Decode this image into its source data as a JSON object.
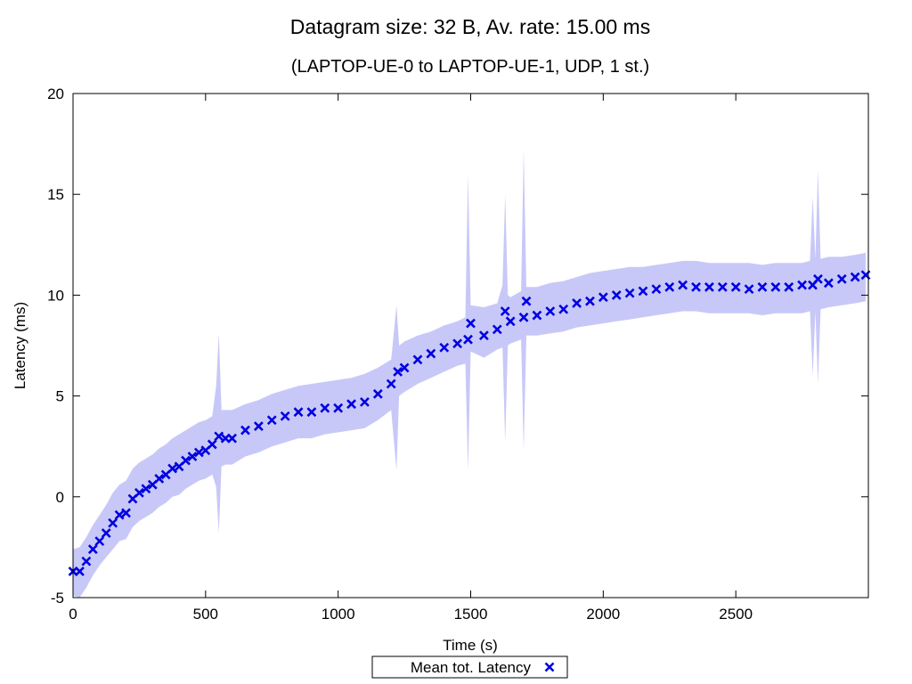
{
  "chart_data": {
    "type": "scatter",
    "title": "Datagram size: 32 B, Av. rate: 15.00 ms",
    "subtitle": "(LAPTOP-UE-0 to LAPTOP-UE-1, UDP, 1 st.)",
    "xlabel": "Time (s)",
    "ylabel": "Latency (ms)",
    "xlim": [
      0,
      3000
    ],
    "ylim": [
      -5,
      20
    ],
    "x_ticks": [
      0,
      500,
      1000,
      1500,
      2000,
      2500
    ],
    "y_ticks": [
      -5,
      0,
      5,
      10,
      15,
      20
    ],
    "grid": false,
    "legend_position": "bottom-center",
    "colors": {
      "series": "#0000e0",
      "band": "#c8c8f8"
    },
    "series": [
      {
        "name": "Mean tot. Latency",
        "marker": "x",
        "x": [
          0,
          25,
          50,
          75,
          100,
          125,
          150,
          175,
          200,
          225,
          250,
          275,
          300,
          325,
          350,
          375,
          400,
          425,
          450,
          475,
          500,
          525,
          550,
          575,
          600,
          650,
          700,
          750,
          800,
          850,
          900,
          950,
          1000,
          1050,
          1100,
          1150,
          1200,
          1225,
          1250,
          1300,
          1350,
          1400,
          1450,
          1490,
          1500,
          1550,
          1600,
          1630,
          1650,
          1700,
          1710,
          1750,
          1800,
          1850,
          1900,
          1950,
          2000,
          2050,
          2100,
          2150,
          2200,
          2250,
          2300,
          2350,
          2400,
          2450,
          2500,
          2550,
          2600,
          2650,
          2700,
          2750,
          2790,
          2810,
          2850,
          2900,
          2950,
          2990
        ],
        "y": [
          -3.7,
          -3.7,
          -3.2,
          -2.6,
          -2.2,
          -1.8,
          -1.3,
          -0.9,
          -0.8,
          -0.1,
          0.2,
          0.4,
          0.6,
          0.9,
          1.1,
          1.4,
          1.5,
          1.8,
          2.0,
          2.2,
          2.3,
          2.6,
          3.0,
          2.9,
          2.9,
          3.3,
          3.5,
          3.8,
          4.0,
          4.2,
          4.2,
          4.4,
          4.4,
          4.6,
          4.7,
          5.1,
          5.6,
          6.2,
          6.4,
          6.8,
          7.1,
          7.4,
          7.6,
          7.8,
          8.6,
          8.0,
          8.3,
          9.2,
          8.7,
          8.9,
          9.7,
          9.0,
          9.2,
          9.3,
          9.6,
          9.7,
          9.9,
          10.0,
          10.1,
          10.2,
          10.3,
          10.4,
          10.5,
          10.4,
          10.4,
          10.4,
          10.4,
          10.3,
          10.4,
          10.4,
          10.4,
          10.5,
          10.5,
          10.8,
          10.6,
          10.8,
          10.9,
          11.0
        ]
      }
    ],
    "band": {
      "name": "",
      "x": [
        0,
        25,
        50,
        75,
        100,
        125,
        150,
        175,
        200,
        225,
        250,
        275,
        300,
        325,
        350,
        375,
        400,
        425,
        450,
        475,
        500,
        525,
        540,
        550,
        560,
        575,
        600,
        650,
        700,
        750,
        800,
        850,
        900,
        950,
        1000,
        1050,
        1100,
        1150,
        1200,
        1220,
        1230,
        1240,
        1250,
        1300,
        1350,
        1400,
        1450,
        1480,
        1490,
        1500,
        1550,
        1600,
        1620,
        1630,
        1640,
        1650,
        1690,
        1700,
        1710,
        1720,
        1750,
        1800,
        1850,
        1900,
        1950,
        2000,
        2050,
        2100,
        2150,
        2200,
        2250,
        2300,
        2350,
        2400,
        2450,
        2500,
        2550,
        2600,
        2650,
        2700,
        2750,
        2780,
        2790,
        2800,
        2810,
        2820,
        2850,
        2900,
        2950,
        2990
      ],
      "upper": [
        -2.6,
        -2.5,
        -2.0,
        -1.4,
        -0.9,
        -0.4,
        0.2,
        0.6,
        0.8,
        1.4,
        1.7,
        1.9,
        2.1,
        2.4,
        2.6,
        2.9,
        3.1,
        3.3,
        3.5,
        3.7,
        3.8,
        4.0,
        5.5,
        8.1,
        4.3,
        4.3,
        4.3,
        4.6,
        4.8,
        5.1,
        5.3,
        5.5,
        5.6,
        5.7,
        5.8,
        5.9,
        6.1,
        6.4,
        6.8,
        9.5,
        7.5,
        7.6,
        7.7,
        8.0,
        8.2,
        8.5,
        8.7,
        8.9,
        16.0,
        9.5,
        9.4,
        9.6,
        10.5,
        15.0,
        10.0,
        9.9,
        10.2,
        17.2,
        10.4,
        10.4,
        10.4,
        10.6,
        10.7,
        10.9,
        11.1,
        11.2,
        11.3,
        11.4,
        11.4,
        11.5,
        11.6,
        11.7,
        11.7,
        11.6,
        11.6,
        11.6,
        11.6,
        11.5,
        11.6,
        11.6,
        11.6,
        11.7,
        14.9,
        11.8,
        16.2,
        11.8,
        11.9,
        11.9,
        12.0,
        12.1
      ],
      "lower": [
        -4.9,
        -5.0,
        -4.5,
        -3.9,
        -3.4,
        -3.0,
        -2.6,
        -2.2,
        -2.1,
        -1.5,
        -1.2,
        -1.0,
        -0.8,
        -0.5,
        -0.3,
        0.0,
        0.1,
        0.4,
        0.6,
        0.8,
        0.9,
        1.1,
        0.5,
        -1.8,
        1.5,
        1.6,
        1.6,
        2.0,
        2.2,
        2.5,
        2.7,
        2.9,
        2.9,
        3.1,
        3.2,
        3.3,
        3.4,
        3.8,
        4.3,
        1.3,
        5.0,
        5.1,
        5.2,
        5.6,
        5.9,
        6.2,
        6.5,
        6.6,
        1.3,
        7.2,
        6.9,
        7.3,
        7.4,
        2.7,
        7.5,
        7.6,
        7.8,
        2.3,
        8.0,
        8.0,
        8.0,
        8.1,
        8.2,
        8.4,
        8.5,
        8.6,
        8.7,
        8.8,
        8.9,
        9.0,
        9.1,
        9.2,
        9.2,
        9.1,
        9.1,
        9.1,
        9.1,
        9.0,
        9.1,
        9.1,
        9.1,
        9.2,
        6.0,
        9.2,
        5.6,
        9.3,
        9.4,
        9.5,
        9.6,
        9.7
      ]
    }
  }
}
